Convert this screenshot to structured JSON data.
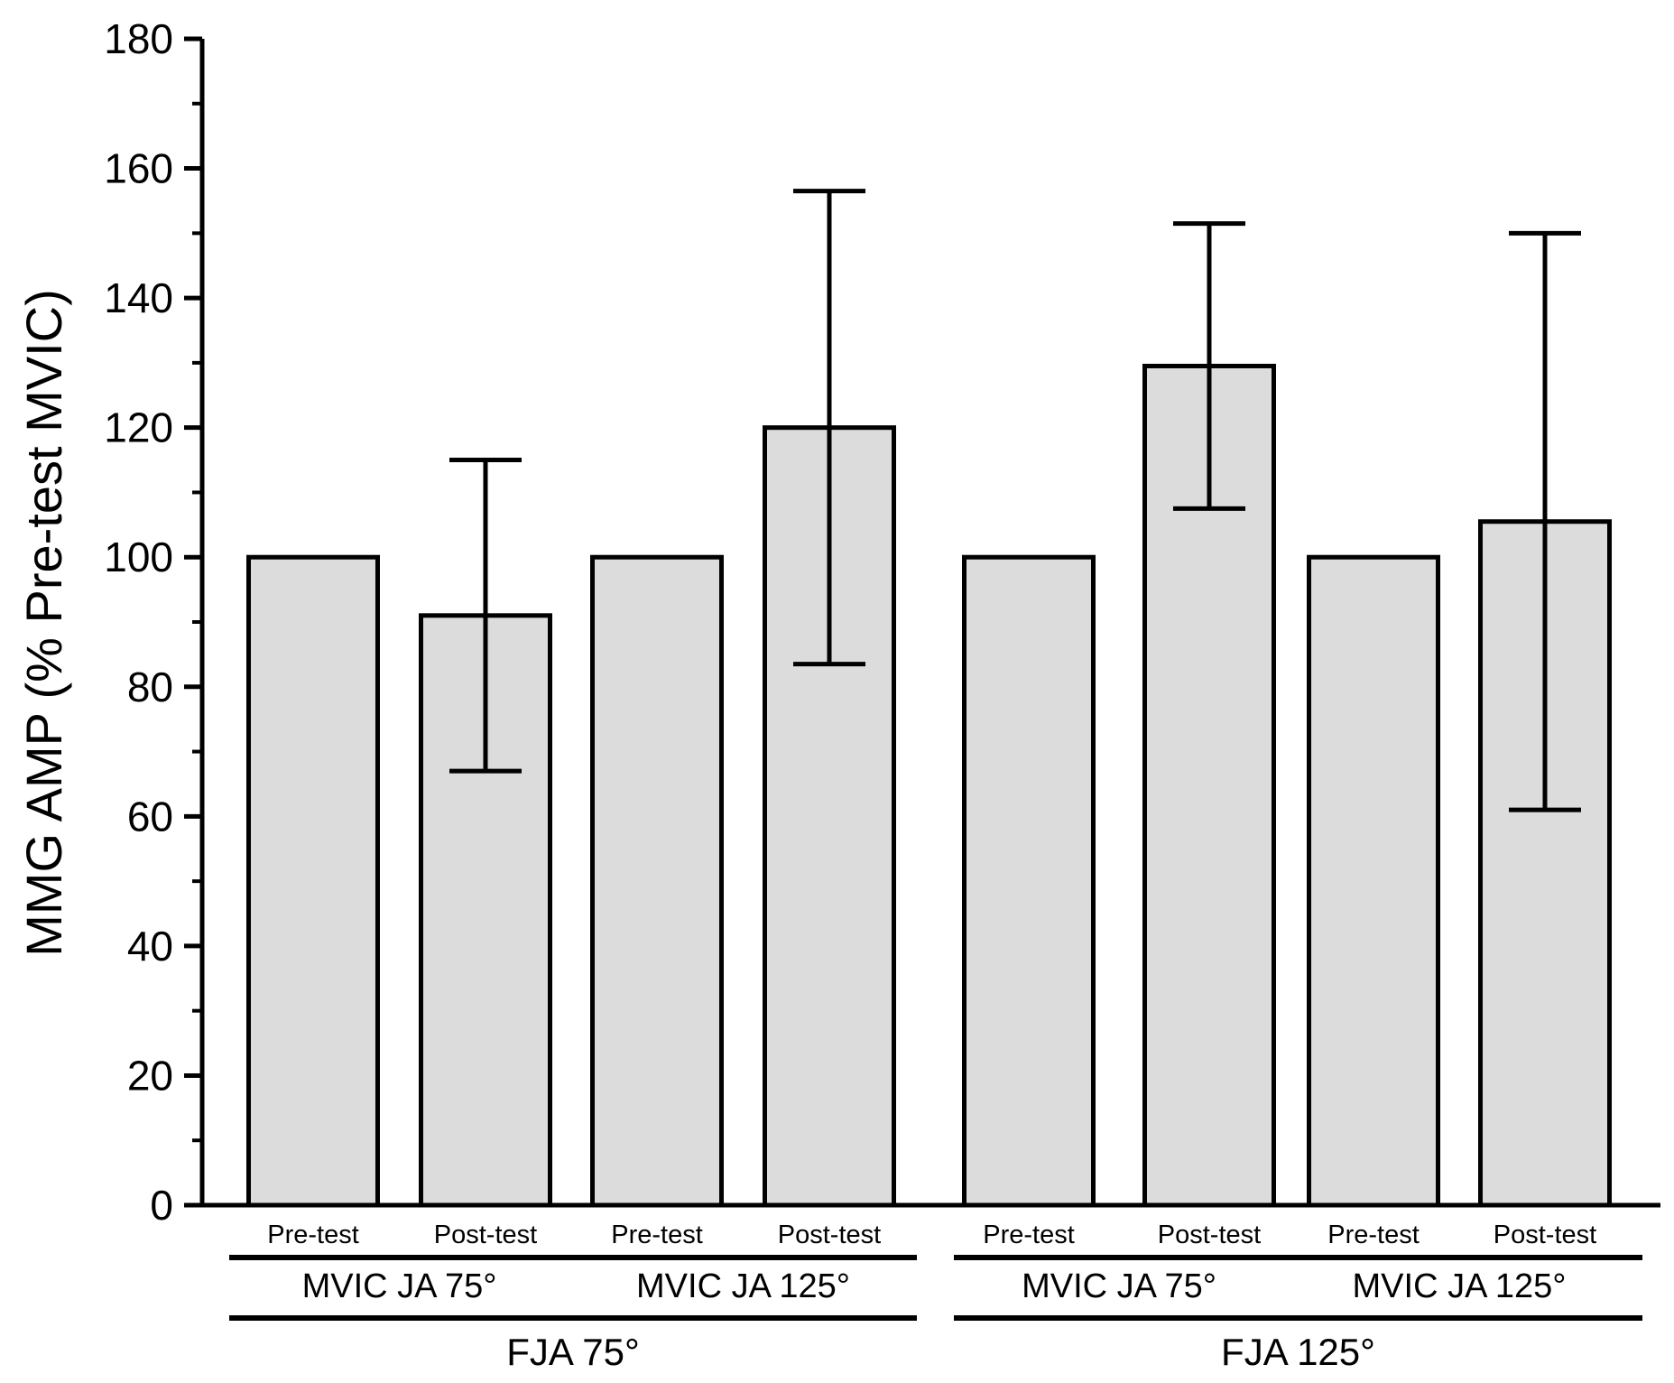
{
  "chart_data": {
    "type": "bar",
    "title": "",
    "xlabel": "",
    "ylabel": "MMG AMP (% Pre-test MVIC)",
    "ylim": [
      0,
      180
    ],
    "yticks": [
      0,
      20,
      40,
      60,
      80,
      100,
      120,
      140,
      160,
      180
    ],
    "grid": false,
    "bar_color": "#dcdcdc",
    "edge_color": "#000000",
    "categories": [
      "Pre-test",
      "Post-test",
      "Pre-test",
      "Post-test",
      "Pre-test",
      "Post-test",
      "Pre-test",
      "Post-test"
    ],
    "values": [
      100,
      91,
      100,
      120,
      100,
      129.5,
      100,
      105.5
    ],
    "errors": [
      null,
      24,
      null,
      36.5,
      null,
      22,
      null,
      44.5
    ],
    "groups": [
      {
        "label": "MVIC JA 75°",
        "bars": [
          0,
          1
        ]
      },
      {
        "label": "MVIC JA 125°",
        "bars": [
          2,
          3
        ]
      },
      {
        "label": "MVIC JA 75°",
        "bars": [
          4,
          5
        ]
      },
      {
        "label": "MVIC JA 125°",
        "bars": [
          6,
          7
        ]
      }
    ],
    "supergroups": [
      {
        "label": "FJA 75°",
        "groups": [
          0,
          1
        ]
      },
      {
        "label": "FJA 125°",
        "groups": [
          2,
          3
        ]
      }
    ]
  }
}
